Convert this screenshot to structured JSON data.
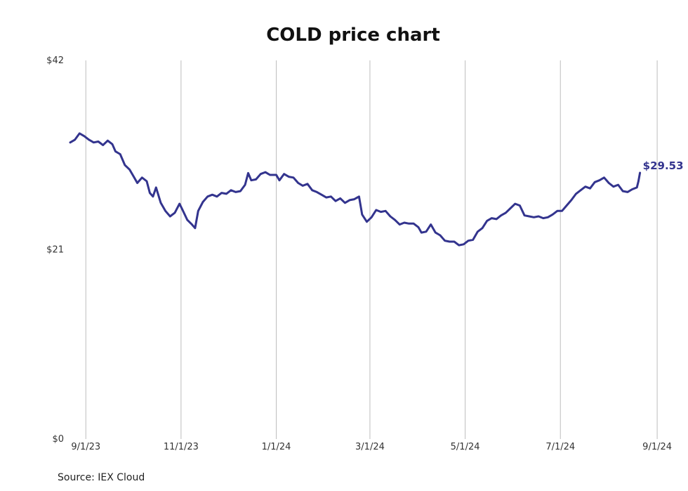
{
  "chart_data": {
    "type": "line",
    "title": "COLD price chart",
    "xlabel": "",
    "ylabel": "",
    "x_ticks": [
      "9/1/23",
      "11/1/23",
      "1/1/24",
      "3/1/24",
      "5/1/24",
      "7/1/24",
      "9/1/24"
    ],
    "y_ticks": [
      "$0",
      "$21",
      "$42"
    ],
    "ylim": [
      0,
      42
    ],
    "xlim": [
      "2023-08-22",
      "2024-09-05"
    ],
    "grid": "vertical",
    "line_color": "#33348e",
    "series": [
      {
        "points": [
          [
            "2023-08-22",
            32.9
          ],
          [
            "2023-08-25",
            33.2
          ],
          [
            "2023-08-28",
            33.9
          ],
          [
            "2023-08-31",
            33.6
          ],
          [
            "2023-09-03",
            33.2
          ],
          [
            "2023-09-06",
            32.9
          ],
          [
            "2023-09-09",
            33.0
          ],
          [
            "2023-09-12",
            32.6
          ],
          [
            "2023-09-15",
            33.1
          ],
          [
            "2023-09-18",
            32.7
          ],
          [
            "2023-09-20",
            31.9
          ],
          [
            "2023-09-23",
            31.6
          ],
          [
            "2023-09-26",
            30.4
          ],
          [
            "2023-09-29",
            29.9
          ],
          [
            "2023-10-02",
            29.0
          ],
          [
            "2023-10-04",
            28.4
          ],
          [
            "2023-10-07",
            29.0
          ],
          [
            "2023-10-10",
            28.6
          ],
          [
            "2023-10-12",
            27.3
          ],
          [
            "2023-10-14",
            26.9
          ],
          [
            "2023-10-16",
            27.9
          ],
          [
            "2023-10-19",
            26.2
          ],
          [
            "2023-10-22",
            25.3
          ],
          [
            "2023-10-25",
            24.7
          ],
          [
            "2023-10-28",
            25.1
          ],
          [
            "2023-10-31",
            26.1
          ],
          [
            "2023-11-02",
            25.4
          ],
          [
            "2023-11-05",
            24.3
          ],
          [
            "2023-11-08",
            23.8
          ],
          [
            "2023-11-10",
            23.4
          ],
          [
            "2023-11-12",
            25.3
          ],
          [
            "2023-11-15",
            26.3
          ],
          [
            "2023-11-18",
            26.9
          ],
          [
            "2023-11-21",
            27.1
          ],
          [
            "2023-11-24",
            26.9
          ],
          [
            "2023-11-27",
            27.3
          ],
          [
            "2023-11-30",
            27.2
          ],
          [
            "2023-12-03",
            27.6
          ],
          [
            "2023-12-06",
            27.4
          ],
          [
            "2023-12-09",
            27.5
          ],
          [
            "2023-12-12",
            28.2
          ],
          [
            "2023-12-14",
            29.5
          ],
          [
            "2023-12-16",
            28.7
          ],
          [
            "2023-12-19",
            28.8
          ],
          [
            "2023-12-22",
            29.4
          ],
          [
            "2023-12-25",
            29.6
          ],
          [
            "2023-12-28",
            29.3
          ],
          [
            "2024-01-01",
            29.3
          ],
          [
            "2024-01-03",
            28.7
          ],
          [
            "2024-01-06",
            29.4
          ],
          [
            "2024-01-09",
            29.1
          ],
          [
            "2024-01-12",
            29.0
          ],
          [
            "2024-01-15",
            28.4
          ],
          [
            "2024-01-18",
            28.1
          ],
          [
            "2024-01-21",
            28.3
          ],
          [
            "2024-01-24",
            27.6
          ],
          [
            "2024-01-27",
            27.4
          ],
          [
            "2024-01-30",
            27.1
          ],
          [
            "2024-02-02",
            26.8
          ],
          [
            "2024-02-05",
            26.9
          ],
          [
            "2024-02-08",
            26.4
          ],
          [
            "2024-02-11",
            26.7
          ],
          [
            "2024-02-14",
            26.2
          ],
          [
            "2024-02-17",
            26.5
          ],
          [
            "2024-02-20",
            26.6
          ],
          [
            "2024-02-23",
            26.9
          ],
          [
            "2024-02-25",
            24.9
          ],
          [
            "2024-02-28",
            24.1
          ],
          [
            "2024-03-02",
            24.6
          ],
          [
            "2024-03-05",
            25.4
          ],
          [
            "2024-03-08",
            25.2
          ],
          [
            "2024-03-11",
            25.3
          ],
          [
            "2024-03-14",
            24.7
          ],
          [
            "2024-03-17",
            24.3
          ],
          [
            "2024-03-20",
            23.8
          ],
          [
            "2024-03-23",
            24.0
          ],
          [
            "2024-03-26",
            23.9
          ],
          [
            "2024-03-29",
            23.9
          ],
          [
            "2024-04-01",
            23.5
          ],
          [
            "2024-04-03",
            22.9
          ],
          [
            "2024-04-06",
            23.0
          ],
          [
            "2024-04-09",
            23.8
          ],
          [
            "2024-04-12",
            22.9
          ],
          [
            "2024-04-15",
            22.6
          ],
          [
            "2024-04-18",
            22.0
          ],
          [
            "2024-04-21",
            21.9
          ],
          [
            "2024-04-24",
            21.9
          ],
          [
            "2024-04-27",
            21.5
          ],
          [
            "2024-04-30",
            21.6
          ],
          [
            "2024-05-03",
            22.0
          ],
          [
            "2024-05-06",
            22.1
          ],
          [
            "2024-05-09",
            23.0
          ],
          [
            "2024-05-12",
            23.4
          ],
          [
            "2024-05-15",
            24.2
          ],
          [
            "2024-05-18",
            24.5
          ],
          [
            "2024-05-21",
            24.4
          ],
          [
            "2024-05-24",
            24.8
          ],
          [
            "2024-05-27",
            25.1
          ],
          [
            "2024-05-30",
            25.6
          ],
          [
            "2024-06-02",
            26.1
          ],
          [
            "2024-06-05",
            25.9
          ],
          [
            "2024-06-08",
            24.8
          ],
          [
            "2024-06-11",
            24.7
          ],
          [
            "2024-06-14",
            24.6
          ],
          [
            "2024-06-17",
            24.7
          ],
          [
            "2024-06-20",
            24.5
          ],
          [
            "2024-06-23",
            24.6
          ],
          [
            "2024-06-26",
            24.9
          ],
          [
            "2024-06-29",
            25.3
          ],
          [
            "2024-07-02",
            25.3
          ],
          [
            "2024-07-05",
            25.9
          ],
          [
            "2024-07-08",
            26.5
          ],
          [
            "2024-07-11",
            27.2
          ],
          [
            "2024-07-14",
            27.6
          ],
          [
            "2024-07-17",
            28.0
          ],
          [
            "2024-07-20",
            27.8
          ],
          [
            "2024-07-23",
            28.5
          ],
          [
            "2024-07-26",
            28.7
          ],
          [
            "2024-07-29",
            29.0
          ],
          [
            "2024-08-01",
            28.4
          ],
          [
            "2024-08-04",
            28.0
          ],
          [
            "2024-08-07",
            28.2
          ],
          [
            "2024-08-10",
            27.5
          ],
          [
            "2024-08-13",
            27.4
          ],
          [
            "2024-08-16",
            27.7
          ],
          [
            "2024-08-19",
            27.9
          ],
          [
            "2024-08-20",
            28.6
          ],
          [
            "2024-08-21",
            29.53
          ]
        ]
      }
    ],
    "last_value_label": "$29.53",
    "source": "Source: IEX Cloud"
  }
}
